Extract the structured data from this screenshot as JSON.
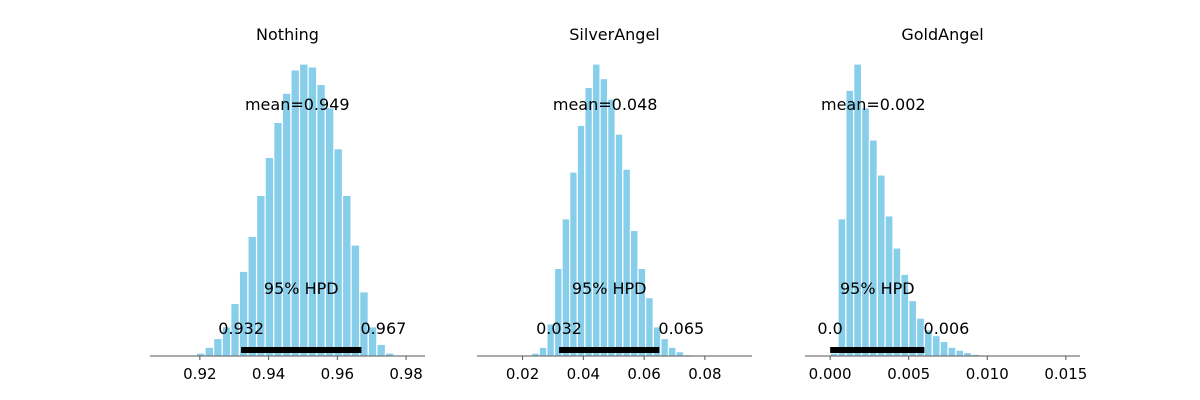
{
  "colors": {
    "bar": "#87ceeb",
    "bar_edge": "#ffffff",
    "hpd_bar": "#000000",
    "axis": "#555555"
  },
  "chart_data": [
    {
      "type": "bar",
      "title": "Nothing",
      "mean_label": "mean=0.949",
      "hpd_label": "95% HPD",
      "hpd_low_label": "0.932",
      "hpd_high_label": "0.967",
      "hpd": [
        0.932,
        0.967
      ],
      "xlim": [
        0.9055,
        0.9855
      ],
      "xticks": [
        0.92,
        0.94,
        0.96,
        0.98
      ],
      "xtick_labels": [
        "0.92",
        "0.94",
        "0.96",
        "0.98"
      ],
      "bin_start": 0.919,
      "bin_width": 0.0025,
      "counts": [
        1,
        3,
        6,
        10,
        18,
        29,
        41,
        55,
        68,
        80,
        90,
        98,
        100,
        99,
        93,
        85,
        71,
        55,
        38,
        22,
        10,
        4,
        1
      ]
    },
    {
      "type": "bar",
      "title": "SilverAngel",
      "mean_label": "mean=0.048",
      "hpd_label": "95% HPD",
      "hpd_low_label": "0.032",
      "hpd_high_label": "0.065",
      "hpd": [
        0.032,
        0.065
      ],
      "xlim": [
        0.005,
        0.0955
      ],
      "xticks": [
        0.02,
        0.04,
        0.06,
        0.08
      ],
      "xtick_labels": [
        "0.02",
        "0.04",
        "0.06",
        "0.08"
      ],
      "bin_start": 0.023,
      "bin_width": 0.0025,
      "counts": [
        1,
        3,
        11,
        30,
        47,
        63,
        79,
        92,
        100,
        95,
        88,
        76,
        64,
        43,
        30,
        20,
        10,
        6,
        3,
        1.5,
        0.5
      ]
    },
    {
      "type": "bar",
      "title": "GoldAngel",
      "mean_label": "mean=0.002",
      "hpd_label": "95% HPD",
      "hpd_low_label": "0.0",
      "hpd_high_label": "0.006",
      "hpd": [
        0.0,
        0.006
      ],
      "xlim": [
        -0.0016,
        0.0159
      ],
      "xticks": [
        0.0,
        0.005,
        0.01,
        0.015
      ],
      "xtick_labels": [
        "0.000",
        "0.005",
        "0.010",
        "0.015"
      ],
      "bin_start": 0.0,
      "bin_width": 0.0005,
      "counts": [
        1,
        47,
        91,
        100,
        85,
        74,
        62,
        48,
        37,
        28,
        19,
        13,
        9,
        7,
        5,
        3,
        2,
        1.2,
        0.6,
        0.3
      ]
    }
  ]
}
